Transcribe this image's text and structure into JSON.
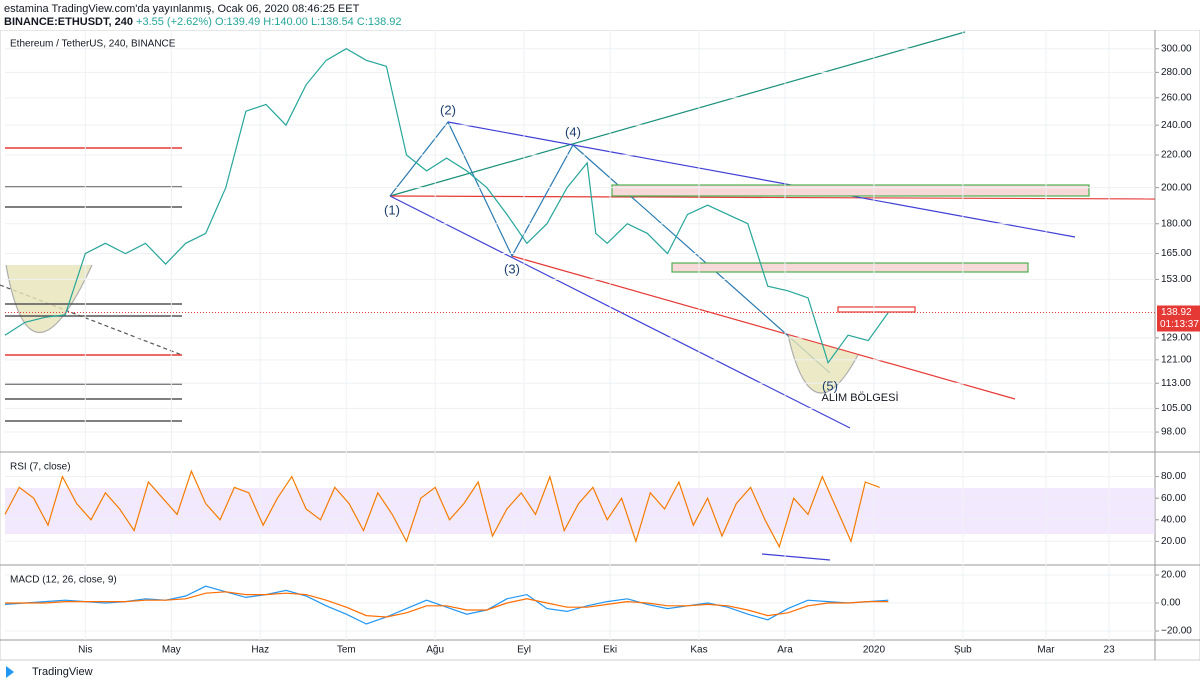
{
  "header": {
    "line1": "estamina TradingView.com'da yayınlanmış, Ocak 06, 2020 08:46:25 EET",
    "symbol": "BINANCE:ETHUSDT, 240",
    "change": "+3.55 (+2.62%)",
    "ohlc": [
      "O:139.49",
      "H:140.00",
      "L:138.54",
      "C:138.92"
    ]
  },
  "footer": {
    "brand": "TradingView"
  },
  "chart_data": [
    {
      "type": "line",
      "title": "Ethereum / TetherUS, 240, BINANCE",
      "log_scale": true,
      "grid": true,
      "x": [
        63,
        70,
        77,
        84,
        91,
        98,
        105,
        112,
        119,
        126,
        133,
        140,
        147,
        154,
        161,
        168,
        175,
        182,
        189,
        196,
        203,
        210,
        217,
        224,
        231,
        238,
        245,
        252,
        259,
        266,
        269,
        273,
        280,
        287,
        294,
        301,
        308,
        315,
        322,
        329,
        336,
        343,
        350,
        357,
        364,
        371
      ],
      "series": [
        {
          "color": "#26a69a",
          "values": [
            130,
            135,
            137,
            138,
            165,
            170,
            165,
            170,
            160,
            170,
            175,
            200,
            250,
            255,
            240,
            270,
            290,
            300,
            290,
            285,
            220,
            210,
            218,
            210,
            200,
            185,
            170,
            180,
            200,
            215,
            175,
            170,
            180,
            175,
            165,
            185,
            190,
            185,
            180,
            150,
            148,
            145,
            120,
            130,
            128,
            138.92
          ]
        }
      ],
      "xlim": [
        63,
        464
      ],
      "xticks": [
        {
          "value": 91,
          "label": "Nis"
        },
        {
          "value": 121,
          "label": "May"
        },
        {
          "value": 152,
          "label": "Haz"
        },
        {
          "value": 182,
          "label": "Tem"
        },
        {
          "value": 213,
          "label": "Ağu"
        },
        {
          "value": 244,
          "label": "Eyl"
        },
        {
          "value": 274,
          "label": "Eki"
        },
        {
          "value": 305,
          "label": "Kas"
        },
        {
          "value": 335,
          "label": "Ara"
        },
        {
          "value": 366,
          "label": "2020"
        },
        {
          "value": 397,
          "label": "Şub"
        },
        {
          "value": 426,
          "label": "Mar"
        },
        {
          "value": 448,
          "label": "23"
        }
      ],
      "ylim": [
        93,
        315
      ],
      "yticks": [
        {
          "value": 300,
          "label": "300.00"
        },
        {
          "value": 280,
          "label": "280.00"
        },
        {
          "value": 260,
          "label": "260.00"
        },
        {
          "value": 240,
          "label": "240.00"
        },
        {
          "value": 220,
          "label": "220.00"
        },
        {
          "value": 200,
          "label": "200.00"
        },
        {
          "value": 180,
          "label": "180.00"
        },
        {
          "value": 165,
          "label": "165.00"
        },
        {
          "value": 153,
          "label": "153.00"
        },
        {
          "value": 129,
          "label": "129.00"
        },
        {
          "value": 121,
          "label": "121.00"
        },
        {
          "value": 113,
          "label": "113.00"
        },
        {
          "value": 105,
          "label": "105.00"
        },
        {
          "value": 98,
          "label": "98.00"
        }
      ],
      "last_price": {
        "value": 138.92,
        "label": "138.92"
      },
      "countdown": "01:13:37",
      "annotations": [
        "(1)",
        "(2)",
        "(3)",
        "(4)",
        "(5)",
        "ALIM BÖLGESİ"
      ]
    },
    {
      "type": "line",
      "title": "RSI (7, close)",
      "grid": true,
      "x": [
        63,
        68,
        73,
        78,
        83,
        88,
        93,
        98,
        103,
        108,
        113,
        118,
        123,
        128,
        133,
        138,
        143,
        148,
        153,
        158,
        163,
        168,
        173,
        178,
        183,
        188,
        193,
        198,
        203,
        208,
        213,
        218,
        223,
        228,
        233,
        238,
        243,
        248,
        253,
        258,
        263,
        268,
        273,
        278,
        283,
        288,
        293,
        298,
        303,
        308,
        313,
        318,
        323,
        328,
        333,
        338,
        343,
        348,
        353,
        358,
        363,
        368
      ],
      "series": [
        {
          "color": "#f57c00",
          "values": [
            45,
            70,
            60,
            35,
            80,
            55,
            40,
            65,
            50,
            30,
            75,
            60,
            45,
            85,
            55,
            40,
            70,
            65,
            35,
            60,
            80,
            50,
            40,
            70,
            55,
            30,
            65,
            45,
            20,
            60,
            70,
            40,
            55,
            75,
            25,
            50,
            65,
            45,
            80,
            30,
            55,
            70,
            40,
            60,
            20,
            65,
            50,
            75,
            35,
            60,
            25,
            55,
            70,
            40,
            15,
            60,
            45,
            80,
            50,
            20,
            75,
            70
          ]
        }
      ],
      "xlim": [
        63,
        464
      ],
      "ylim": [
        0,
        100
      ],
      "yticks": [
        {
          "value": 80,
          "label": "80.00"
        },
        {
          "value": 60,
          "label": "60.00"
        },
        {
          "value": 40,
          "label": "40.00"
        },
        {
          "value": 20,
          "label": "20.00"
        }
      ]
    },
    {
      "type": "line",
      "title": "MACD (12, 26, close, 9)",
      "grid": true,
      "x": [
        63,
        70,
        77,
        84,
        91,
        98,
        105,
        112,
        119,
        126,
        133,
        140,
        147,
        154,
        161,
        168,
        175,
        182,
        189,
        196,
        203,
        210,
        217,
        224,
        231,
        238,
        245,
        252,
        259,
        266,
        273,
        280,
        287,
        294,
        301,
        308,
        315,
        322,
        329,
        336,
        343,
        350,
        357,
        364,
        371
      ],
      "series": [
        {
          "color": "#2196f3",
          "values": [
            -1,
            0,
            1,
            2,
            1,
            0,
            1,
            3,
            2,
            5,
            12,
            8,
            4,
            6,
            9,
            5,
            -2,
            -8,
            -15,
            -10,
            -4,
            2,
            -3,
            -8,
            -5,
            3,
            6,
            -4,
            -6,
            -2,
            1,
            3,
            -1,
            -4,
            -2,
            0,
            -3,
            -8,
            -12,
            -4,
            2,
            1,
            0,
            1,
            2
          ]
        },
        {
          "color": "#ff6d00",
          "values": [
            0,
            0,
            0,
            1,
            1,
            1,
            1,
            2,
            2,
            3,
            7,
            8,
            6,
            6,
            7,
            6,
            2,
            -3,
            -9,
            -10,
            -7,
            -2,
            -2,
            -5,
            -5,
            0,
            3,
            0,
            -3,
            -3,
            -1,
            1,
            0,
            -2,
            -2,
            -1,
            -2,
            -5,
            -9,
            -7,
            -2,
            0,
            0,
            1,
            1
          ]
        }
      ],
      "xlim": [
        63,
        464
      ],
      "ylim": [
        -25,
        25
      ],
      "yticks": [
        {
          "value": 20,
          "label": "20.00"
        },
        {
          "value": 0,
          "label": "0.00"
        },
        {
          "value": -20,
          "label": "−20.00"
        }
      ]
    }
  ]
}
